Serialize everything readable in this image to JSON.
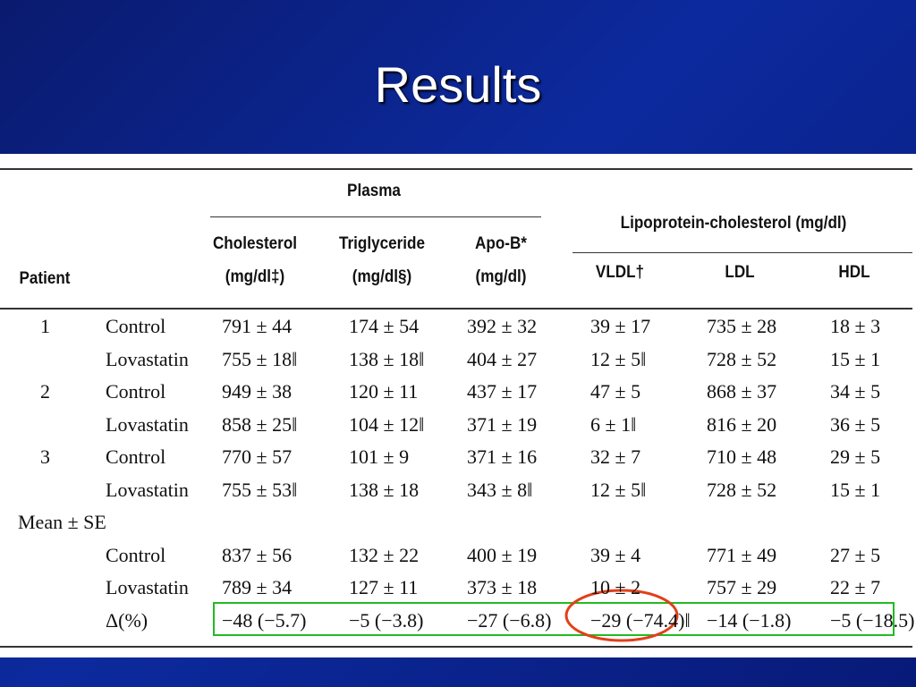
{
  "title": "Results",
  "table": {
    "group_headers": [
      "Plasma",
      "Lipoprotein-cholesterol (mg/dl)"
    ],
    "patient_header": "Patient",
    "columns": [
      {
        "name": "Cholesterol",
        "unit": "(mg/dl‡)"
      },
      {
        "name": "Triglyceride",
        "unit": "(mg/dl§)"
      },
      {
        "name": "Apo-B*",
        "unit": "(mg/dl)"
      },
      {
        "name": "VLDL†"
      },
      {
        "name": "LDL"
      },
      {
        "name": "HDL"
      }
    ],
    "rows": [
      {
        "patient": "1",
        "group": "Control",
        "cells": [
          "791 ± 44",
          "174 ± 54",
          "392 ± 32",
          "39 ± 17",
          "735 ± 28",
          "18 ± 3"
        ]
      },
      {
        "group": "Lovastatin",
        "cells": [
          "755 ± 18‖",
          "138 ± 18‖",
          "404 ± 27",
          "12 ± 5‖",
          "728 ± 52",
          "15 ± 1"
        ]
      },
      {
        "patient": "2",
        "group": "Control",
        "cells": [
          "949 ± 38",
          "120 ± 11",
          "437 ± 17",
          "47 ± 5",
          "868 ± 37",
          "34 ± 5"
        ]
      },
      {
        "group": "Lovastatin",
        "cells": [
          "858 ± 25‖",
          "104 ± 12‖",
          "371 ± 19",
          "6 ± 1‖",
          "816 ± 20",
          "36 ± 5"
        ]
      },
      {
        "patient": "3",
        "group": "Control",
        "cells": [
          "770 ± 57",
          "101 ± 9",
          "371 ± 16",
          "32 ± 7",
          "710 ± 48",
          "29 ± 5"
        ]
      },
      {
        "group": "Lovastatin",
        "cells": [
          "755 ± 53‖",
          "138 ± 18",
          "343 ± 8‖",
          "12 ± 5‖",
          "728 ± 52",
          "15 ± 1"
        ]
      },
      {
        "label": "Mean ± SE"
      },
      {
        "group": "Control",
        "cells": [
          "837 ± 56",
          "132 ± 22",
          "400 ± 19",
          "39 ± 4",
          "771 ± 49",
          "27 ± 5"
        ]
      },
      {
        "group": "Lovastatin",
        "cells": [
          "789 ± 34",
          "127 ± 11",
          "373 ± 18",
          "10 ± 2",
          "757 ± 29",
          "22 ± 7"
        ]
      },
      {
        "group": "Δ(%)",
        "cells": [
          "−48 (−5.7)",
          "−5 (−3.8)",
          "−27 (−6.8)",
          "−29 (−74.4)‖",
          "−14 (−1.8)",
          "−5 (−18.5)"
        ]
      }
    ]
  }
}
